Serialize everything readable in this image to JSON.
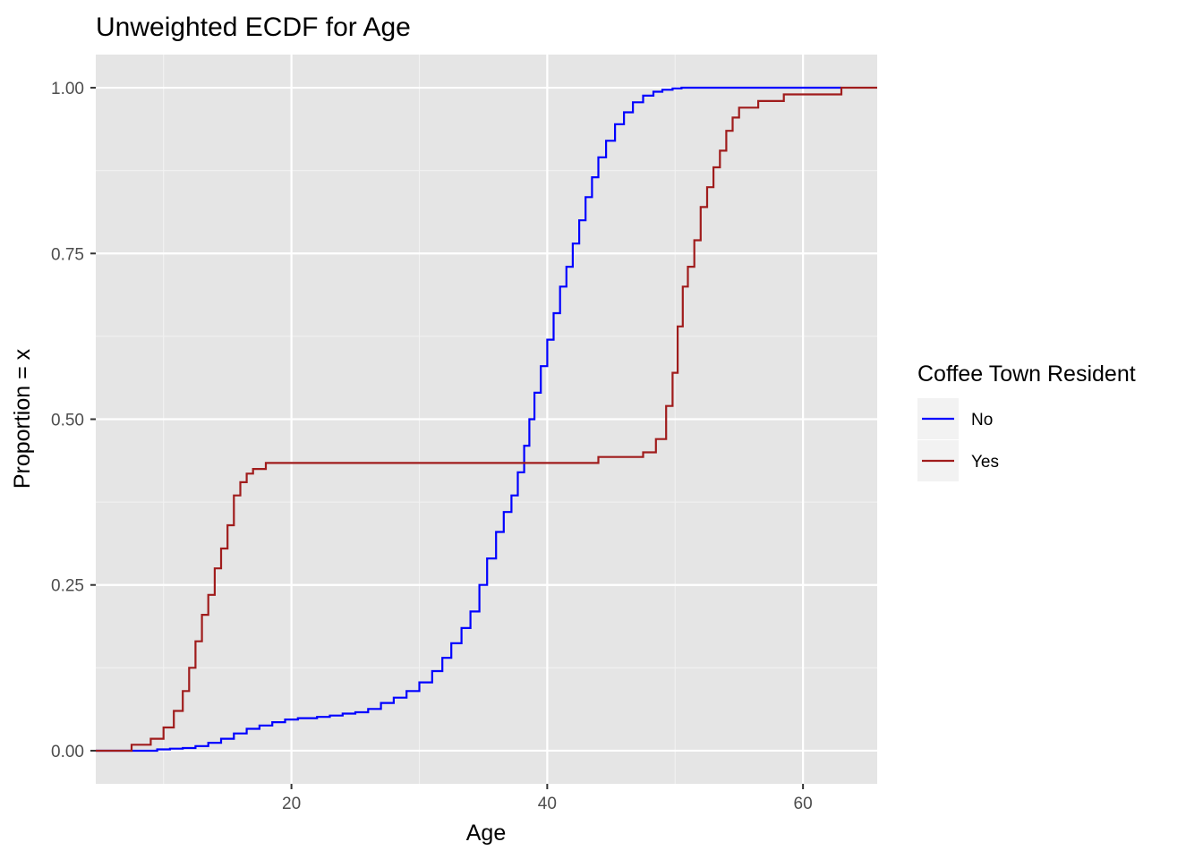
{
  "chart_data": {
    "type": "line",
    "step": true,
    "title": "Unweighted ECDF for Age",
    "xlabel": "Age",
    "ylabel": "Proportion = x",
    "xlim": [
      4.7,
      65.8
    ],
    "ylim": [
      -0.05,
      1.05
    ],
    "x_ticks": [
      20,
      40,
      60
    ],
    "x_tick_labels": [
      "20",
      "40",
      "60"
    ],
    "y_ticks": [
      0,
      0.25,
      0.5,
      0.75,
      1
    ],
    "y_tick_labels": [
      "0.00",
      "0.25",
      "0.50",
      "0.75",
      "1.00"
    ],
    "grid": true,
    "legend": {
      "title": "Coffee Town Resident",
      "position": "right"
    },
    "series": [
      {
        "name": "No",
        "color": "#0000ff",
        "x": [
          4.7,
          8.0,
          9.5,
          10.5,
          11.5,
          12.5,
          13.5,
          14.5,
          15.5,
          16.5,
          17.5,
          18.5,
          19.5,
          20.5,
          22.0,
          23.0,
          24.0,
          25.0,
          26.0,
          27.0,
          28.0,
          29.0,
          30.0,
          31.0,
          31.8,
          32.5,
          33.3,
          34.0,
          34.7,
          35.3,
          36.0,
          36.6,
          37.2,
          37.7,
          38.2,
          38.6,
          39.0,
          39.5,
          40.0,
          40.5,
          41.0,
          41.5,
          42.0,
          42.5,
          43.0,
          43.5,
          44.0,
          44.6,
          45.3,
          46.0,
          46.7,
          47.5,
          48.3,
          49.0,
          49.8,
          50.5,
          51.0,
          52.0,
          63.0
        ],
        "y": [
          0,
          0,
          0.002,
          0.003,
          0.004,
          0.007,
          0.012,
          0.018,
          0.026,
          0.033,
          0.038,
          0.043,
          0.047,
          0.049,
          0.051,
          0.053,
          0.056,
          0.058,
          0.063,
          0.072,
          0.08,
          0.09,
          0.103,
          0.12,
          0.14,
          0.162,
          0.185,
          0.21,
          0.25,
          0.29,
          0.33,
          0.36,
          0.385,
          0.42,
          0.46,
          0.5,
          0.54,
          0.58,
          0.62,
          0.66,
          0.7,
          0.73,
          0.765,
          0.8,
          0.835,
          0.865,
          0.895,
          0.92,
          0.945,
          0.963,
          0.978,
          0.988,
          0.994,
          0.997,
          0.999,
          1,
          1,
          1,
          1
        ]
      },
      {
        "name": "Yes",
        "color": "#a01c1c",
        "x": [
          4.7,
          7.5,
          9.0,
          10.0,
          10.8,
          11.5,
          12.0,
          12.5,
          13.0,
          13.5,
          14.0,
          14.5,
          15.0,
          15.5,
          16.0,
          16.5,
          17.0,
          18.0,
          43.0,
          44.0,
          47.5,
          48.5,
          49.3,
          49.8,
          50.2,
          50.6,
          51.0,
          51.5,
          52.0,
          52.5,
          53.0,
          53.5,
          54.0,
          54.5,
          55.0,
          56.5,
          58.5,
          63.0,
          65.8
        ],
        "y": [
          0,
          0.009,
          0.018,
          0.035,
          0.06,
          0.09,
          0.125,
          0.165,
          0.205,
          0.235,
          0.275,
          0.305,
          0.34,
          0.385,
          0.405,
          0.418,
          0.425,
          0.434,
          0.434,
          0.443,
          0.45,
          0.47,
          0.52,
          0.57,
          0.64,
          0.7,
          0.73,
          0.77,
          0.82,
          0.85,
          0.88,
          0.905,
          0.935,
          0.955,
          0.97,
          0.98,
          0.99,
          1,
          1
        ]
      }
    ]
  }
}
